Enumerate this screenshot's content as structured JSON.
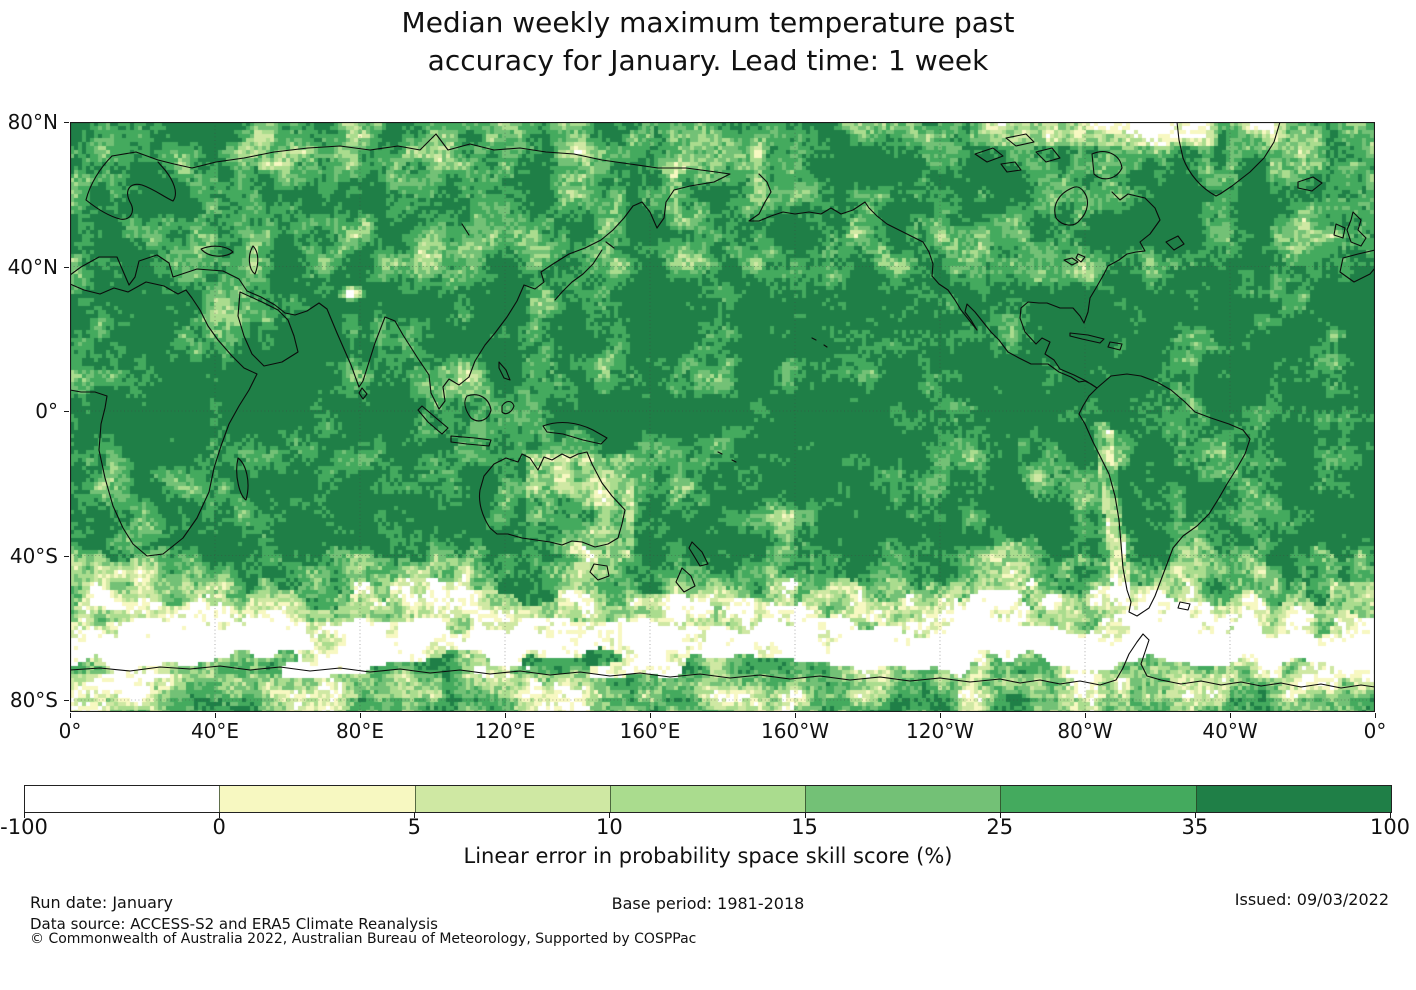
{
  "title": {
    "line1": "Median weekly maximum temperature past",
    "line2": "accuracy for January. Lead time: 1 week"
  },
  "map": {
    "x_tick_labels": [
      "0°",
      "40°E",
      "80°E",
      "120°E",
      "160°E",
      "160°W",
      "120°W",
      "80°W",
      "40°W",
      "0°"
    ],
    "y_tick_labels": [
      "80°N",
      "40°N",
      "0°",
      "40°S",
      "80°S"
    ],
    "coastline_color": "#0b0b0b",
    "grid_color": "#444444"
  },
  "colorbar": {
    "label": "Linear error in probability space skill score (%)",
    "tick_labels": [
      "-100",
      "0",
      "5",
      "10",
      "15",
      "25",
      "35",
      "100"
    ],
    "segment_colors": [
      "#ffffff",
      "#f7f8c1",
      "#cfe8a3",
      "#aadc8e",
      "#73c176",
      "#44aa5e",
      "#1f7f47"
    ]
  },
  "chart_data": {
    "type": "heatmap",
    "title": "Median weekly maximum temperature past accuracy for January. Lead time: 1 week",
    "variable": "Linear error in probability space skill score (%)",
    "projection": "equirectangular world map, Pacific-centred (0°E eastward to 0°E)",
    "lon_tick_labels": [
      "0°",
      "40°E",
      "80°E",
      "120°E",
      "160°E",
      "160°W",
      "120°W",
      "80°W",
      "40°W",
      "0°"
    ],
    "lat_tick_labels": [
      "80°N",
      "40°N",
      "0°",
      "40°S",
      "80°S"
    ],
    "colorbar_boundaries": [
      -100,
      0,
      5,
      10,
      15,
      25,
      35,
      100
    ],
    "colorbar_segment_colors": [
      "#ffffff",
      "#f7f8c1",
      "#cfe8a3",
      "#aadc8e",
      "#73c176",
      "#44aa5e",
      "#1f7f47"
    ],
    "legend_position": "horizontal colorbar below map",
    "grid": "dotted graticule every 40° longitude and latitude",
    "pattern_summary": [
      {
        "region": "Tropics and most mid-latitude oceans and continents",
        "skill_score_pct": "35 to 100 (dark green)"
      },
      {
        "region": "Northern mid and high latitudes",
        "skill_score_pct": "15 to 35 patches mixed into 35-100 background"
      },
      {
        "region": "Eastern Australia, Greenland interior, NE Atlantic",
        "skill_score_pct": "10 to 25 (lighter greens)"
      },
      {
        "region": "Southern Ocean 40°S-55°S",
        "skill_score_pct": "5 to 25"
      },
      {
        "region": "Antarctic sea-ice zone ~55°S-70°S",
        "skill_score_pct": "-100 to 5 (white / pale yellow band)"
      },
      {
        "region": "Antarctic continent south of coastline",
        "skill_score_pct": "10 to 35 with pale patches"
      },
      {
        "region": "Himalaya/Pamir spot ~80°E 35°N",
        "skill_score_pct": "-100 to 0 (small white spot)"
      }
    ]
  },
  "footer": {
    "run_date": "Run date: January",
    "data_source": "Data source: ACCESS-S2 and ERA5 Climate Reanalysis",
    "copyright": "© Commonwealth of Australia 2022, Australian Bureau of Meteorology, Supported by COSPPac",
    "base_period": "Base period: 1981-2018",
    "issued": "Issued: 09/03/2022"
  }
}
